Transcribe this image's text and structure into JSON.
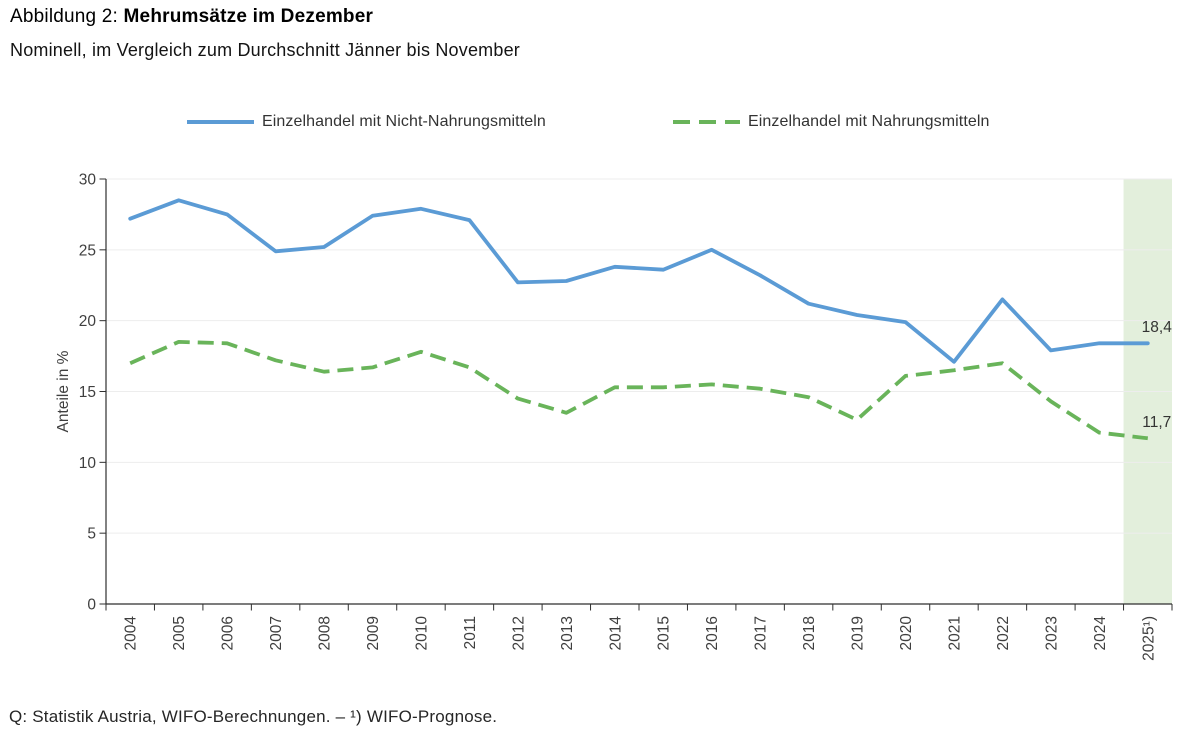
{
  "title": {
    "prefix": "Abbildung 2: ",
    "emphasis": "Mehrumsätze im Dezember"
  },
  "subtitle": "Nominell, im Vergleich zum Durchschnitt Jänner bis November",
  "footer": {
    "source": "Q: Statistik Austria, WIFO-Berechnungen. – ¹) WIFO-Prognose."
  },
  "chart_data": {
    "type": "line",
    "title": "Mehrumsätze im Dezember",
    "ylabel": "Anteile in %",
    "xlabel": "",
    "ylim": [
      0,
      30
    ],
    "yticks": [
      0,
      5,
      10,
      15,
      20,
      25,
      30
    ],
    "grid": true,
    "legend_position": "top",
    "categories": [
      "2004",
      "2005",
      "2006",
      "2007",
      "2008",
      "2009",
      "2010",
      "2011",
      "2012",
      "2013",
      "2014",
      "2015",
      "2016",
      "2017",
      "2018",
      "2019",
      "2020",
      "2021",
      "2022",
      "2023",
      "2024",
      "2025¹)"
    ],
    "series": [
      {
        "name": "Einzelhandel mit Nicht-Nahrungsmitteln",
        "style": "solid",
        "color": "#5b9bd5",
        "values": [
          27.2,
          28.5,
          27.5,
          24.9,
          25.2,
          27.4,
          27.9,
          27.1,
          22.7,
          22.8,
          23.8,
          23.6,
          25.0,
          23.2,
          21.2,
          20.4,
          19.9,
          17.1,
          21.5,
          17.9,
          18.4,
          18.4
        ],
        "end_label": "18,4"
      },
      {
        "name": "Einzelhandel mit Nahrungsmitteln",
        "style": "dashed",
        "color": "#69b45a",
        "values": [
          17.0,
          18.5,
          18.4,
          17.2,
          16.4,
          16.7,
          17.8,
          16.7,
          14.5,
          13.5,
          15.3,
          15.3,
          15.5,
          15.2,
          14.6,
          13.0,
          16.1,
          16.5,
          17.0,
          14.3,
          12.1,
          11.7
        ],
        "end_label": "11,7"
      }
    ],
    "highlight_band": {
      "category": "2025¹)",
      "color": "#e3efdc",
      "note": "WIFO-Prognose"
    },
    "colors": {
      "grid": "#ededed",
      "axis": "#2f2f2f",
      "tick_label": "#3f3f3f",
      "end_label": "#333333"
    }
  }
}
